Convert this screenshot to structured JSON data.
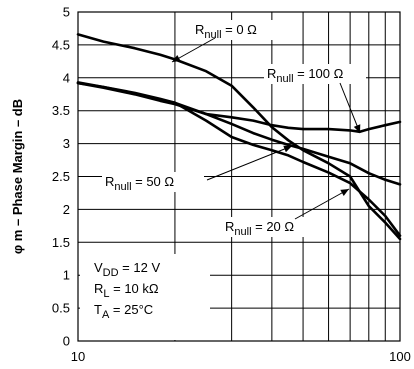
{
  "chart_data": {
    "type": "line",
    "title": "",
    "xlabel": "",
    "ylabel": "φ m – Phase Margin – dB",
    "x_scale": "log",
    "xlim": [
      10,
      100
    ],
    "ylim": [
      0,
      5
    ],
    "grid": true,
    "x_ticks": [
      "10",
      "100"
    ],
    "y_ticks": [
      "0",
      "0.5",
      "1",
      "1.5",
      "2",
      "2.5",
      "3",
      "3.5",
      "4",
      "4.5",
      "5"
    ],
    "series": [
      {
        "name": "Rnull = 0 Ω",
        "x": [
          10,
          12,
          15,
          18,
          20,
          25,
          30,
          35,
          40,
          45,
          50,
          60,
          70,
          80,
          90,
          100
        ],
        "y": [
          4.66,
          4.55,
          4.45,
          4.35,
          4.28,
          4.1,
          3.88,
          3.55,
          3.25,
          3.05,
          2.9,
          2.7,
          2.5,
          2.05,
          1.8,
          1.55
        ]
      },
      {
        "name": "Rnull = 100 Ω",
        "x": [
          10,
          12,
          15,
          18,
          20,
          25,
          30,
          35,
          40,
          45,
          50,
          60,
          70,
          75,
          80,
          90,
          100
        ],
        "y": [
          3.92,
          3.85,
          3.75,
          3.65,
          3.6,
          3.45,
          3.4,
          3.35,
          3.28,
          3.24,
          3.22,
          3.22,
          3.2,
          3.18,
          3.22,
          3.28,
          3.33
        ]
      },
      {
        "name": "Rnull = 50 Ω",
        "x": [
          10,
          12,
          15,
          18,
          20,
          25,
          30,
          35,
          40,
          45,
          50,
          60,
          70,
          80,
          90,
          100
        ],
        "y": [
          3.92,
          3.86,
          3.77,
          3.68,
          3.62,
          3.45,
          3.3,
          3.16,
          3.06,
          2.98,
          2.92,
          2.8,
          2.7,
          2.55,
          2.45,
          2.38
        ]
      },
      {
        "name": "Rnull = 20 Ω",
        "x": [
          10,
          12,
          15,
          18,
          20,
          25,
          30,
          35,
          40,
          45,
          50,
          60,
          70,
          80,
          90,
          100
        ],
        "y": [
          3.93,
          3.86,
          3.76,
          3.67,
          3.62,
          3.35,
          3.1,
          2.98,
          2.9,
          2.82,
          2.72,
          2.56,
          2.4,
          2.15,
          1.9,
          1.6
        ]
      }
    ],
    "annotations": [
      {
        "label_main": "R",
        "label_sub": "null",
        "label_rest": " = 0 Ω"
      },
      {
        "label_main": "R",
        "label_sub": "null",
        "label_rest": " = 100 Ω"
      },
      {
        "label_main": "R",
        "label_sub": "null",
        "label_rest": " = 50 Ω"
      },
      {
        "label_main": "R",
        "label_sub": "null",
        "label_rest": " = 20 Ω"
      }
    ],
    "conditions": [
      {
        "main": "V",
        "sub": "DD",
        "rest": " = 12 V"
      },
      {
        "main": "R",
        "sub": "L",
        "rest": " = 10 kΩ"
      },
      {
        "main": "T",
        "sub": "A",
        "rest": " = 25°C"
      }
    ]
  }
}
